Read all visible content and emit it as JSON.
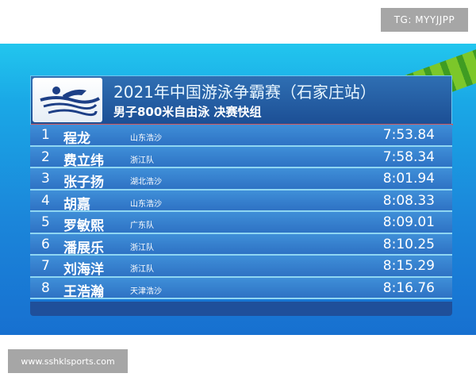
{
  "watermarks": {
    "top_right": "TG: MYYJJPP",
    "bottom_left": "www.sshklsports.com"
  },
  "board": {
    "title": "2021年中国游泳争霸赛（石家庄站）",
    "subtitle": "男子800米自由泳 决赛快组",
    "logo_icon": "swimmer-icon",
    "results": [
      {
        "rank": "1",
        "name": "程龙",
        "team": "山东浩沙",
        "time": "7:53.84"
      },
      {
        "rank": "2",
        "name": "费立纬",
        "team": "浙江队",
        "time": "7:58.34"
      },
      {
        "rank": "3",
        "name": "张子扬",
        "team": "湖北浩沙",
        "time": "8:01.94"
      },
      {
        "rank": "4",
        "name": "胡嘉",
        "team": "山东浩沙",
        "time": "8:08.33"
      },
      {
        "rank": "5",
        "name": "罗敏熙",
        "team": "广东队",
        "time": "8:09.01"
      },
      {
        "rank": "6",
        "name": "潘展乐",
        "team": "浙江队",
        "time": "8:10.25"
      },
      {
        "rank": "7",
        "name": "刘海洋",
        "team": "浙江队",
        "time": "8:15.29"
      },
      {
        "rank": "8",
        "name": "王浩瀚",
        "team": "天津浩沙",
        "time": "8:16.76"
      }
    ]
  }
}
